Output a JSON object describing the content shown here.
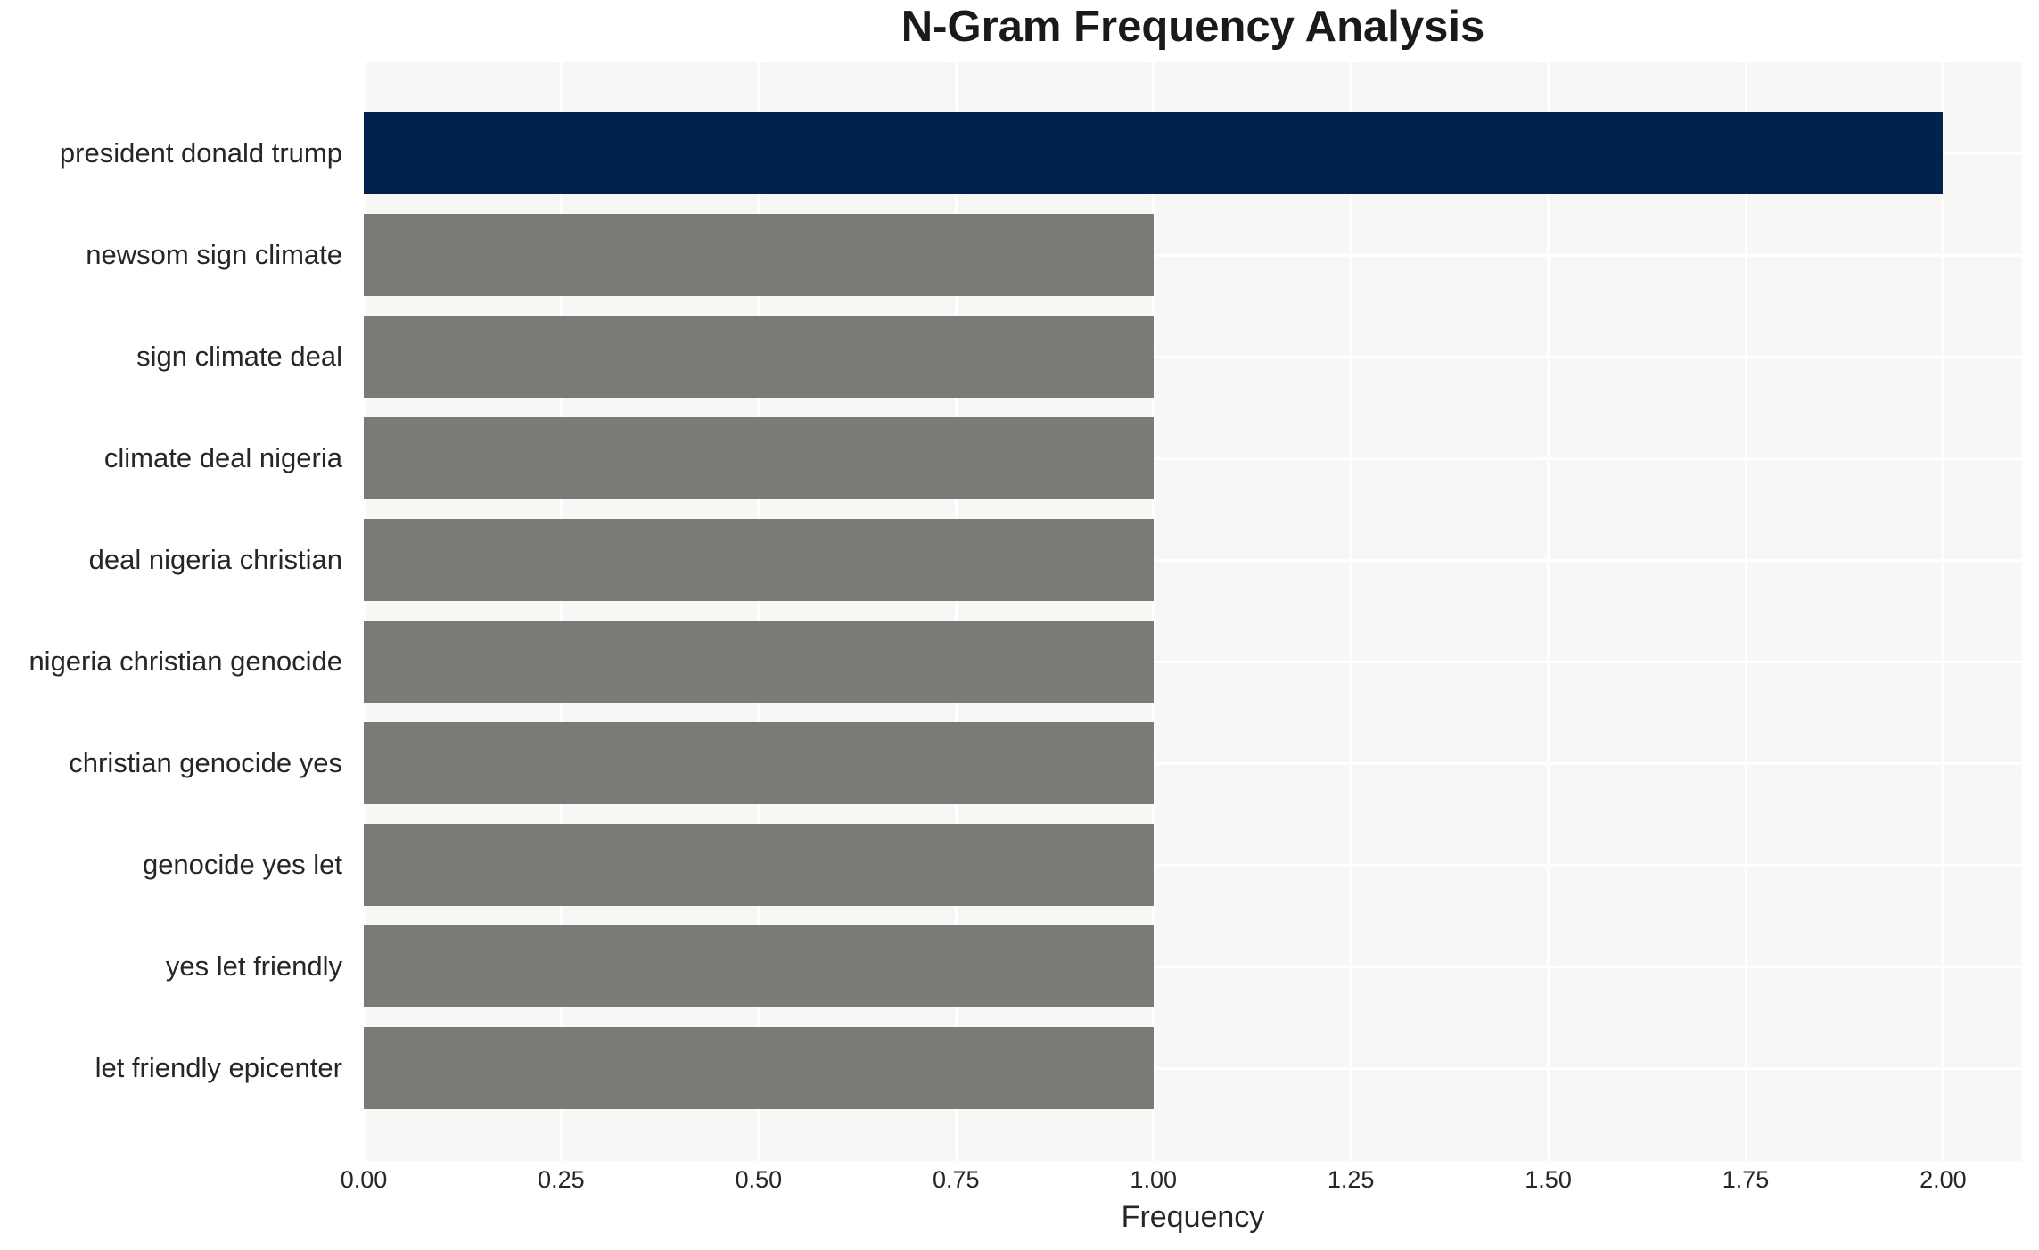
{
  "style": {
    "figure_bg": "#ffffff",
    "plot_bg": "#f7f7f6",
    "grid_color": "#ffffff",
    "highlight_bar_color": "#01224e",
    "default_bar_color": "#7b7a76",
    "text_color": "#262626",
    "title_color": "#1a1a1a"
  },
  "chart_data": {
    "type": "bar",
    "orientation": "horizontal",
    "title": "N-Gram Frequency Analysis",
    "xlabel": "Frequency",
    "ylabel": "",
    "legend": null,
    "grid": true,
    "categories": [
      "president donald trump",
      "newsom sign climate",
      "sign climate deal",
      "climate deal nigeria",
      "deal nigeria christian",
      "nigeria christian genocide",
      "christian genocide yes",
      "genocide yes let",
      "yes let friendly",
      "let friendly epicenter"
    ],
    "values": [
      2.0,
      1.0,
      1.0,
      1.0,
      1.0,
      1.0,
      1.0,
      1.0,
      1.0,
      1.0
    ],
    "bar_colors": [
      "#01224e",
      "#7b7a76",
      "#7b7a76",
      "#7b7a76",
      "#7b7a76",
      "#7b7a76",
      "#7b7a76",
      "#7b7a76",
      "#7b7a76",
      "#7b7a76"
    ],
    "xlim": [
      0,
      2.1
    ],
    "xtick_values": [
      0.0,
      0.25,
      0.5,
      0.75,
      1.0,
      1.25,
      1.5,
      1.75,
      2.0
    ],
    "xtick_labels": [
      "0.00",
      "0.25",
      "0.50",
      "0.75",
      "1.00",
      "1.25",
      "1.50",
      "1.75",
      "2.00"
    ]
  }
}
